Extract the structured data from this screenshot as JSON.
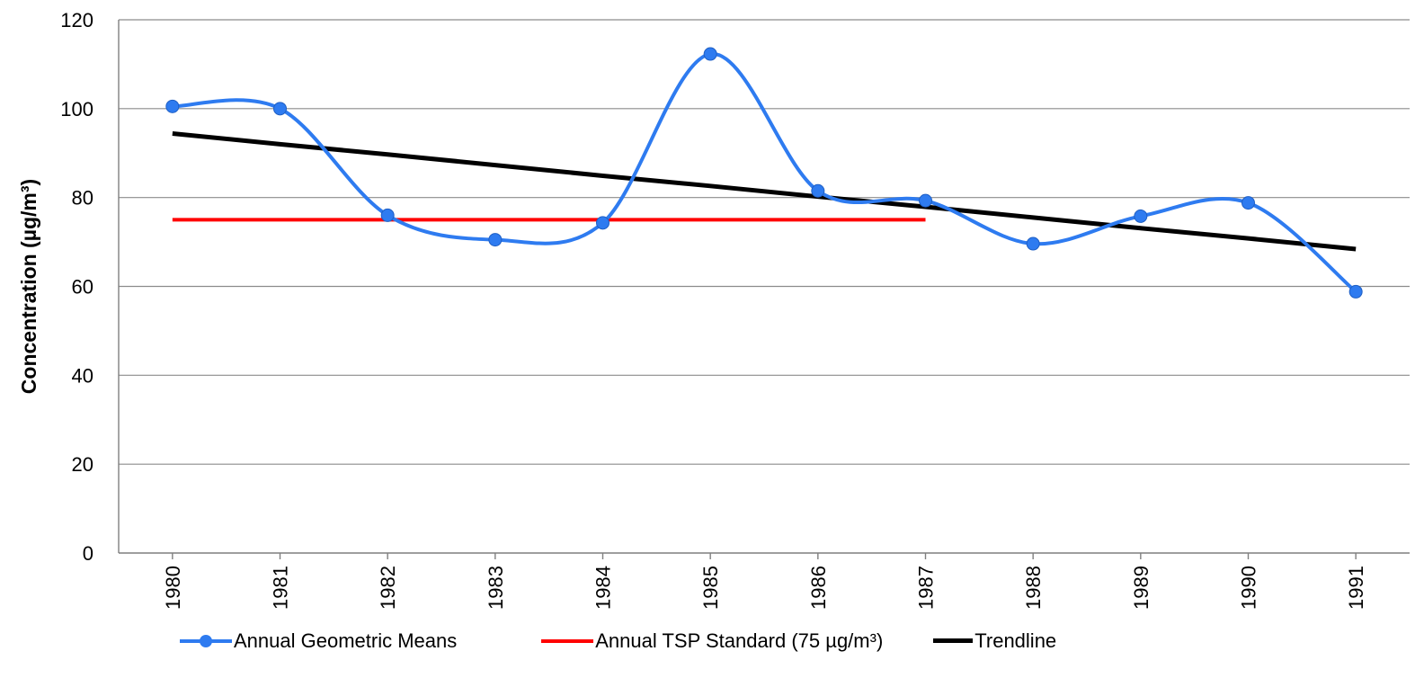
{
  "chart_data": {
    "type": "line",
    "title": "",
    "xlabel": "",
    "ylabel": "Concentration (µg/m³)",
    "categories": [
      "1980",
      "1981",
      "1982",
      "1983",
      "1984",
      "1985",
      "1986",
      "1987",
      "1988",
      "1989",
      "1990",
      "1991"
    ],
    "ylim": [
      0,
      120
    ],
    "yticks": [
      0,
      20,
      40,
      60,
      80,
      100,
      120
    ],
    "ytick_labels": [
      "0",
      "20",
      "40",
      "60",
      "80",
      "100",
      "120"
    ],
    "grid": true,
    "legend_position": "bottom",
    "series": [
      {
        "name": "Annual Geometric Means",
        "style": "smooth-line-markers",
        "color": "#2E7BF0",
        "values": [
          100.5,
          100.0,
          76.0,
          70.5,
          74.3,
          112.3,
          81.5,
          79.3,
          69.6,
          75.8,
          78.8,
          58.8
        ]
      },
      {
        "name": "Annual TSP Standard (75 µg/m³)",
        "style": "line",
        "color": "#FF0000",
        "values": [
          75,
          75,
          75,
          75,
          75,
          75,
          75,
          75,
          null,
          null,
          null,
          null
        ]
      },
      {
        "name": "Trendline",
        "style": "line",
        "color": "#000000",
        "values": [
          94.4,
          92.0,
          89.7,
          87.3,
          84.9,
          82.6,
          80.2,
          77.9,
          75.5,
          73.1,
          70.8,
          68.4
        ]
      }
    ]
  }
}
